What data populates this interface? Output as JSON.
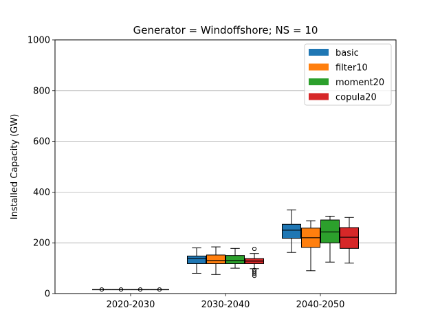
{
  "chart_data": {
    "type": "box",
    "title": "Generator = Windoffshore; NS = 10",
    "xlabel": "",
    "ylabel": "Installed Capacity (GW)",
    "ylim": [
      0,
      1000
    ],
    "yticks": [
      0,
      200,
      400,
      600,
      800,
      1000
    ],
    "grid": "y",
    "legend_position": "top-right",
    "categories": [
      "2020-2030",
      "2030-2040",
      "2040-2050"
    ],
    "series": [
      {
        "name": "basic",
        "color": "#1f77b4",
        "boxes": [
          {
            "whislo": 16,
            "q1": 16,
            "med": 16,
            "q3": 16,
            "whishi": 16,
            "fliers": [
              16
            ]
          },
          {
            "whislo": 80,
            "q1": 118,
            "med": 138,
            "q3": 148,
            "whishi": 180,
            "fliers": []
          },
          {
            "whislo": 162,
            "q1": 218,
            "med": 250,
            "q3": 273,
            "whishi": 330,
            "fliers": []
          }
        ]
      },
      {
        "name": "filter10",
        "color": "#ff7f0e",
        "boxes": [
          {
            "whislo": 16,
            "q1": 16,
            "med": 16,
            "q3": 16,
            "whishi": 16,
            "fliers": [
              16
            ]
          },
          {
            "whislo": 75,
            "q1": 118,
            "med": 130,
            "q3": 152,
            "whishi": 184,
            "fliers": []
          },
          {
            "whislo": 90,
            "q1": 182,
            "med": 220,
            "q3": 258,
            "whishi": 287,
            "fliers": []
          }
        ]
      },
      {
        "name": "moment20",
        "color": "#2ca02c",
        "boxes": [
          {
            "whislo": 16,
            "q1": 16,
            "med": 16,
            "q3": 16,
            "whishi": 16,
            "fliers": [
              16
            ]
          },
          {
            "whislo": 100,
            "q1": 118,
            "med": 130,
            "q3": 150,
            "whishi": 178,
            "fliers": []
          },
          {
            "whislo": 124,
            "q1": 200,
            "med": 243,
            "q3": 290,
            "whishi": 305,
            "fliers": []
          }
        ]
      },
      {
        "name": "copula20",
        "color": "#d62728",
        "boxes": [
          {
            "whislo": 16,
            "q1": 16,
            "med": 16,
            "q3": 16,
            "whishi": 16,
            "fliers": [
              16
            ]
          },
          {
            "whislo": 98,
            "q1": 118,
            "med": 128,
            "q3": 138,
            "whishi": 158,
            "fliers": [
              70,
              78,
              86,
              93,
              176
            ]
          },
          {
            "whislo": 120,
            "q1": 178,
            "med": 222,
            "q3": 260,
            "whishi": 300,
            "fliers": []
          }
        ]
      }
    ]
  }
}
